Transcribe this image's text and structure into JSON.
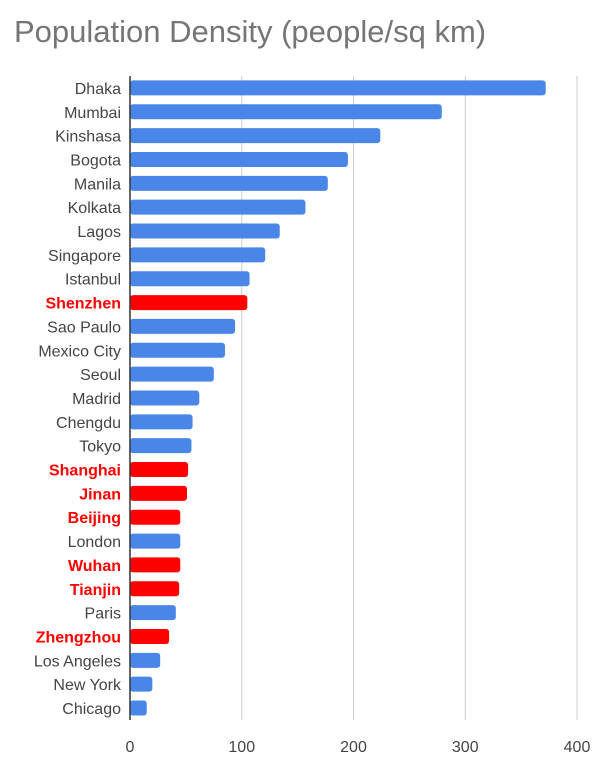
{
  "chart_data": {
    "type": "bar",
    "orientation": "horizontal",
    "title": "Population Density (people/sq km)",
    "xlabel": "",
    "ylabel": "",
    "xlim": [
      0,
      400
    ],
    "xticks": [
      0,
      100,
      200,
      300,
      400
    ],
    "grid": true,
    "legend": "none",
    "categories": [
      "Dhaka",
      "Mumbai",
      "Kinshasa",
      "Bogota",
      "Manila",
      "Kolkata",
      "Lagos",
      "Singapore",
      "Istanbul",
      "Shenzhen",
      "Sao Paulo",
      "Mexico City",
      "Seoul",
      "Madrid",
      "Chengdu",
      "Tokyo",
      "Shanghai",
      "Jinan",
      "Beijing",
      "London",
      "Wuhan",
      "Tianjin",
      "Paris",
      "Zhengzhou",
      "Los Angeles",
      "New York",
      "Chicago"
    ],
    "values": [
      372,
      279,
      224,
      195,
      177,
      157,
      134,
      121,
      107,
      105,
      94,
      85,
      75,
      62,
      56,
      55,
      52,
      51,
      45,
      45,
      45,
      44,
      41,
      35,
      27,
      20,
      15
    ],
    "highlighted": [
      "Shenzhen",
      "Shanghai",
      "Jinan",
      "Beijing",
      "Wuhan",
      "Tianjin",
      "Zhengzhou"
    ],
    "colors": {
      "default_bar": "#4a86e8",
      "highlight_bar": "#ff0000",
      "default_label": "#444444",
      "highlight_label": "#ff0000",
      "grid": "#cccccc",
      "axis": "#333333"
    }
  }
}
